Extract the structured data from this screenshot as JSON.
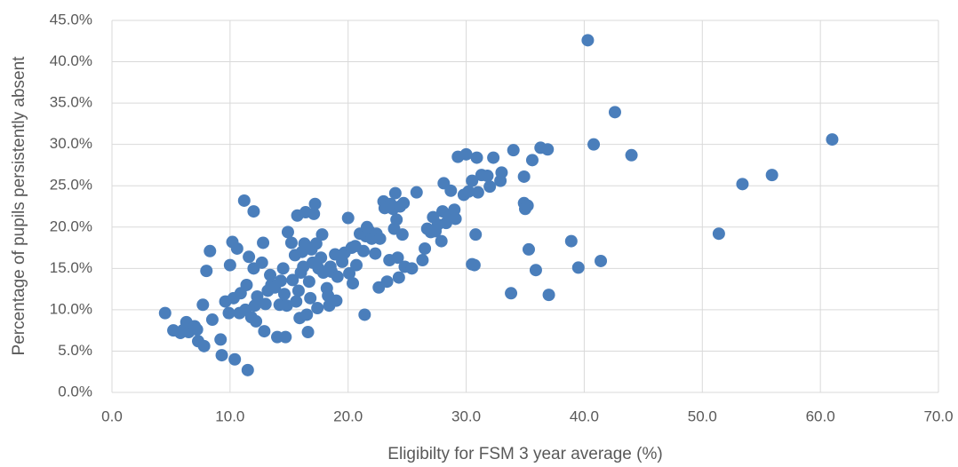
{
  "chart_data": {
    "type": "scatter",
    "x_label": "Eligibilty for FSM 3 year average (%)",
    "y_label": "Percentage of pupils persistently absent",
    "color": "#4a7ebb",
    "grid": true,
    "xlim": [
      0,
      70
    ],
    "xticks": [
      {
        "value": 0,
        "label": "0.0"
      },
      {
        "value": 10,
        "label": "10.0"
      },
      {
        "value": 20,
        "label": "20.0"
      },
      {
        "value": 30,
        "label": "30.0"
      },
      {
        "value": 40,
        "label": "40.0"
      },
      {
        "value": 50,
        "label": "50.0"
      },
      {
        "value": 60,
        "label": "60.0"
      },
      {
        "value": 70,
        "label": "70.0"
      }
    ],
    "ylim": [
      0,
      45
    ],
    "yticks": [
      {
        "value": 0,
        "label": "0.0%"
      },
      {
        "value": 5,
        "label": "5.0%"
      },
      {
        "value": 10,
        "label": "10.0%"
      },
      {
        "value": 15,
        "label": "15.0%"
      },
      {
        "value": 20,
        "label": "20.0%"
      },
      {
        "value": 25,
        "label": "25.0%"
      },
      {
        "value": 30,
        "label": "30.0%"
      },
      {
        "value": 35,
        "label": "35.0%"
      },
      {
        "value": 40,
        "label": "40.0%"
      },
      {
        "value": 45,
        "label": "45.0%"
      }
    ],
    "x": [
      4.5,
      5.2,
      5.8,
      6.0,
      6.3,
      6.5,
      7.0,
      7.2,
      7.3,
      7.8,
      7.7,
      8.0,
      8.3,
      8.5,
      9.2,
      9.3,
      9.6,
      9.9,
      10.0,
      10.2,
      10.3,
      10.4,
      10.6,
      10.8,
      10.9,
      11.2,
      11.3,
      11.4,
      11.5,
      11.6,
      11.8,
      12.0,
      12.0,
      12.1,
      12.2,
      12.3,
      12.7,
      12.8,
      12.9,
      13.0,
      13.2,
      13.4,
      13.5,
      13.8,
      14.0,
      14.2,
      14.3,
      14.5,
      14.6,
      14.7,
      14.8,
      14.9,
      15.2,
      15.3,
      15.5,
      15.6,
      15.7,
      15.8,
      15.9,
      16.0,
      16.1,
      16.2,
      16.3,
      16.4,
      16.5,
      16.6,
      16.7,
      16.8,
      16.9,
      17.0,
      17.1,
      17.2,
      17.3,
      17.4,
      17.5,
      17.7,
      17.8,
      17.9,
      18.2,
      18.3,
      18.4,
      18.5,
      18.6,
      18.9,
      19.0,
      19.1,
      19.5,
      19.7,
      20.0,
      20.1,
      20.3,
      20.4,
      20.6,
      20.7,
      21.0,
      21.3,
      21.4,
      21.5,
      21.6,
      21.8,
      22.0,
      22.3,
      22.4,
      22.6,
      22.7,
      23.0,
      23.1,
      23.3,
      23.5,
      23.6,
      23.8,
      23.9,
      24.0,
      24.1,
      24.2,
      24.3,
      24.4,
      24.6,
      24.7,
      24.8,
      25.4,
      25.8,
      26.3,
      26.5,
      26.7,
      27.0,
      27.2,
      27.4,
      27.6,
      27.9,
      28.0,
      28.1,
      28.3,
      28.6,
      28.7,
      29.0,
      29.1,
      29.3,
      29.8,
      30.0,
      30.2,
      30.5,
      30.5,
      30.7,
      30.8,
      30.9,
      31.0,
      31.3,
      31.8,
      32.0,
      32.3,
      32.9,
      33.0,
      33.8,
      34.0,
      34.9,
      34.9,
      35.0,
      35.2,
      35.3,
      35.6,
      35.9,
      36.3,
      36.9,
      37.0,
      38.9,
      39.5,
      40.3,
      40.8,
      41.4,
      42.6,
      44.0,
      51.4,
      53.4,
      55.9,
      61.0
    ],
    "values": [
      9.6,
      7.5,
      7.2,
      7.5,
      8.5,
      7.3,
      8.0,
      7.6,
      6.2,
      5.6,
      10.6,
      14.7,
      17.1,
      8.8,
      6.4,
      4.5,
      11.0,
      9.6,
      15.4,
      18.2,
      11.4,
      4.0,
      17.4,
      9.6,
      12.0,
      23.2,
      10.0,
      13.0,
      2.7,
      16.4,
      9.1,
      21.9,
      15.0,
      10.5,
      8.6,
      11.6,
      15.7,
      18.1,
      7.4,
      10.7,
      12.3,
      14.2,
      13.0,
      12.7,
      6.7,
      10.6,
      13.5,
      15.0,
      11.9,
      6.7,
      10.5,
      19.4,
      18.1,
      13.6,
      16.6,
      11.0,
      21.4,
      12.3,
      9.0,
      14.5,
      17.0,
      15.2,
      18.0,
      21.8,
      9.4,
      7.3,
      13.4,
      11.4,
      17.3,
      15.7,
      21.6,
      22.8,
      18.0,
      10.2,
      15.0,
      16.3,
      19.1,
      14.5,
      12.6,
      11.7,
      10.5,
      15.2,
      14.6,
      16.7,
      11.1,
      14.0,
      15.8,
      16.9,
      21.1,
      14.4,
      17.5,
      13.2,
      17.7,
      15.4,
      19.2,
      17.1,
      9.4,
      18.9,
      20.0,
      19.5,
      18.6,
      16.8,
      19.2,
      12.7,
      18.6,
      23.1,
      22.3,
      13.4,
      16.0,
      22.8,
      22.2,
      19.8,
      24.1,
      20.9,
      16.3,
      13.9,
      22.5,
      19.1,
      22.9,
      15.2,
      15.0,
      24.2,
      16.0,
      17.4,
      19.8,
      19.4,
      21.2,
      19.5,
      20.3,
      18.3,
      21.9,
      25.3,
      20.5,
      21.3,
      24.4,
      22.1,
      21.0,
      28.5,
      23.9,
      28.8,
      24.3,
      25.6,
      15.5,
      15.4,
      19.1,
      28.4,
      24.2,
      26.3,
      26.2,
      24.9,
      28.4,
      25.6,
      26.6,
      12.0,
      29.3,
      26.1,
      22.9,
      22.2,
      22.6,
      17.3,
      28.1,
      14.8,
      29.6,
      29.4,
      11.8,
      18.3,
      15.1,
      42.6,
      30.0,
      15.9,
      33.9,
      28.7,
      19.2,
      25.2,
      26.3,
      30.6
    ]
  }
}
